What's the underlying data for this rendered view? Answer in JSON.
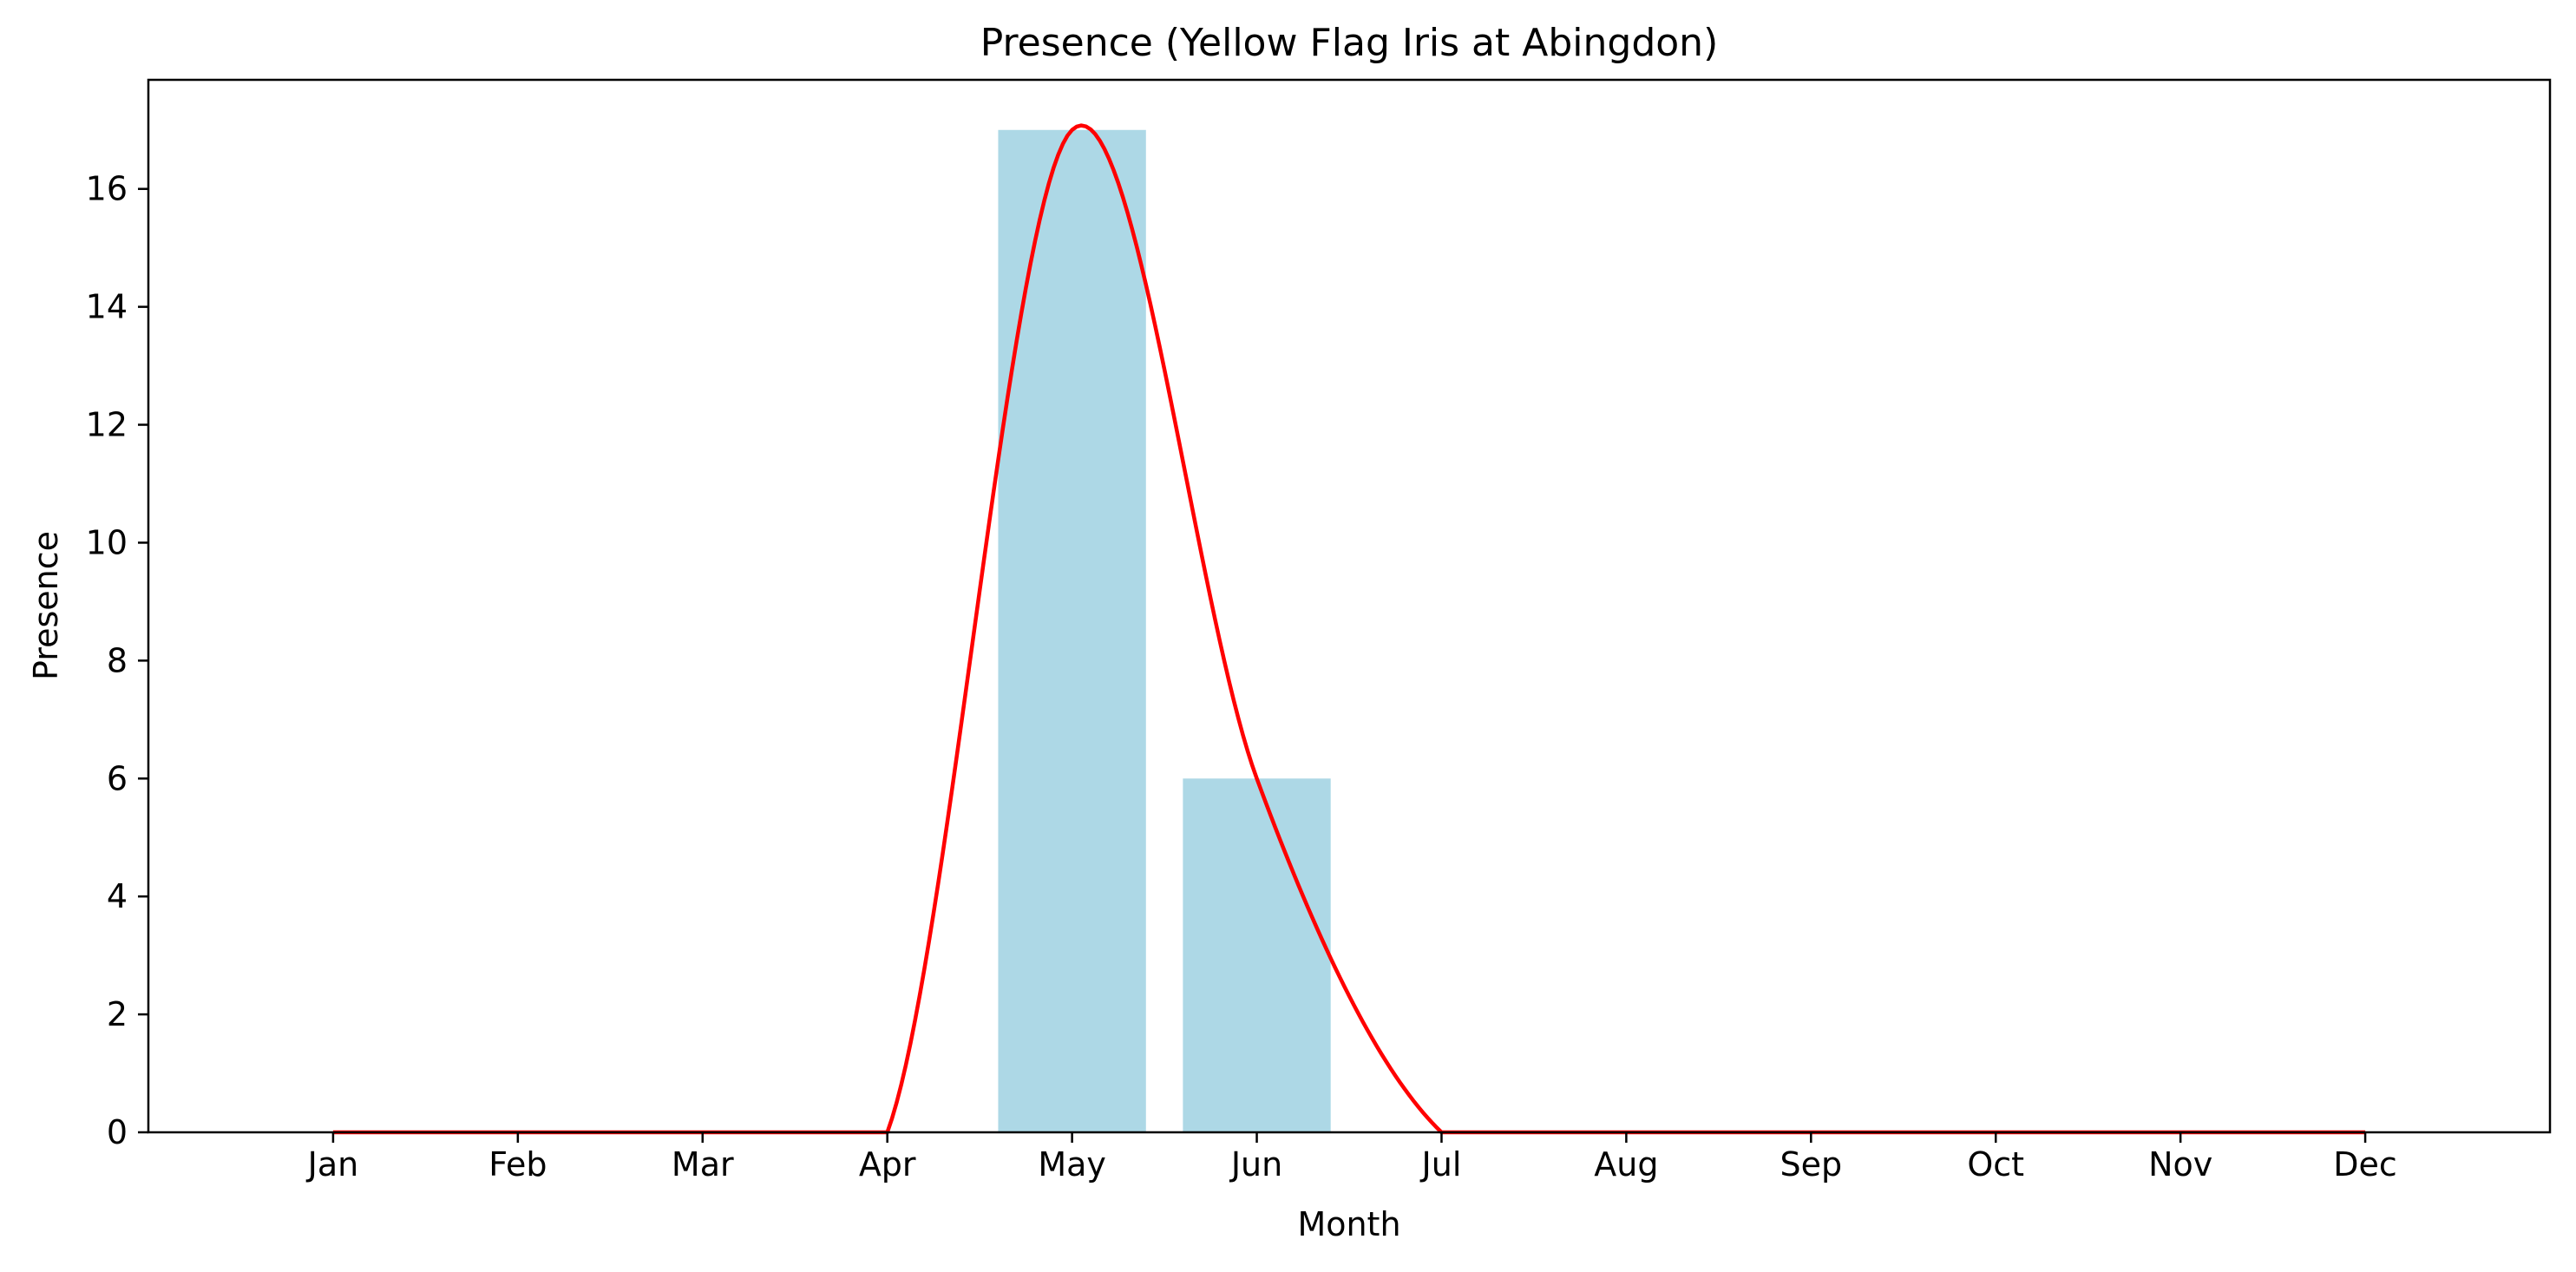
{
  "chart_data": {
    "type": "bar",
    "title": "Presence (Yellow Flag Iris at Abingdon)",
    "xlabel": "Month",
    "ylabel": "Presence",
    "categories": [
      "Jan",
      "Feb",
      "Mar",
      "Apr",
      "May",
      "Jun",
      "Jul",
      "Aug",
      "Sep",
      "Oct",
      "Nov",
      "Dec"
    ],
    "series": [
      {
        "type": "bar",
        "values": [
          0,
          0,
          0,
          0,
          17,
          6,
          0,
          0,
          0,
          0,
          0,
          0
        ],
        "color": "#add8e6"
      },
      {
        "type": "line",
        "smooth": true,
        "values": [
          0,
          0,
          0,
          0,
          17,
          6,
          0,
          0,
          0,
          0,
          0,
          0
        ],
        "color": "#ff0000"
      }
    ],
    "ylim": [
      0,
      17.85
    ],
    "yticks": [
      0,
      2,
      4,
      6,
      8,
      10,
      12,
      14,
      16
    ],
    "grid": false,
    "legend": "none"
  }
}
